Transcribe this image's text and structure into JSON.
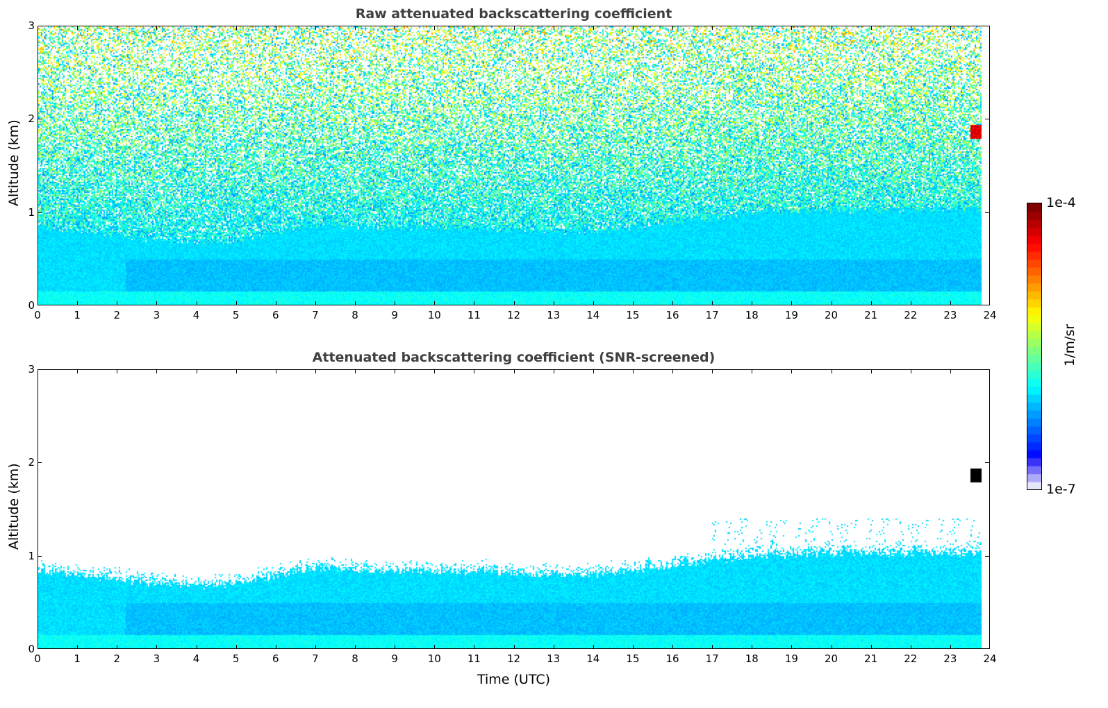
{
  "chart_data": [
    {
      "type": "heatmap",
      "title": "Raw attenuated backscattering coefficient",
      "xlabel": "",
      "ylabel": "Altitude (km)",
      "xlim": [
        0,
        24
      ],
      "ylim": [
        0,
        3
      ],
      "xticks": [
        "0",
        "1",
        "2",
        "3",
        "4",
        "5",
        "6",
        "7",
        "8",
        "9",
        "10",
        "11",
        "12",
        "13",
        "14",
        "15",
        "16",
        "17",
        "18",
        "19",
        "20",
        "21",
        "22",
        "23",
        "24"
      ],
      "yticks": [
        "0",
        "1",
        "2",
        "3"
      ],
      "data_end_hour": 23.8,
      "screened": false
    },
    {
      "type": "heatmap",
      "title": "Attenuated backscattering coefficient (SNR-screened)",
      "xlabel": "Time (UTC)",
      "ylabel": "Altitude (km)",
      "xlim": [
        0,
        24
      ],
      "ylim": [
        0,
        3
      ],
      "xticks": [
        "0",
        "1",
        "2",
        "3",
        "4",
        "5",
        "6",
        "7",
        "8",
        "9",
        "10",
        "11",
        "12",
        "13",
        "14",
        "15",
        "16",
        "17",
        "18",
        "19",
        "20",
        "21",
        "22",
        "23",
        "24"
      ],
      "yticks": [
        "0",
        "1",
        "2",
        "3"
      ],
      "data_end_hour": 23.8,
      "screened": true
    }
  ],
  "aerosol_layer_top_km_hourly": [
    0.85,
    0.8,
    0.75,
    0.7,
    0.68,
    0.7,
    0.78,
    0.88,
    0.85,
    0.83,
    0.85,
    0.83,
    0.82,
    0.8,
    0.8,
    0.85,
    0.9,
    0.95,
    1.0,
    1.02,
    1.03,
    1.03,
    1.03,
    1.03,
    1.03
  ],
  "cloud": {
    "start_hour": 23.5,
    "end_hour": 23.8,
    "base_km": 1.8,
    "top_km": 1.95
  },
  "colorbar": {
    "label": "1/m/sr",
    "min_label": "1e-7",
    "max_label": "1e-4",
    "scale": "log",
    "colormap": "jet"
  }
}
